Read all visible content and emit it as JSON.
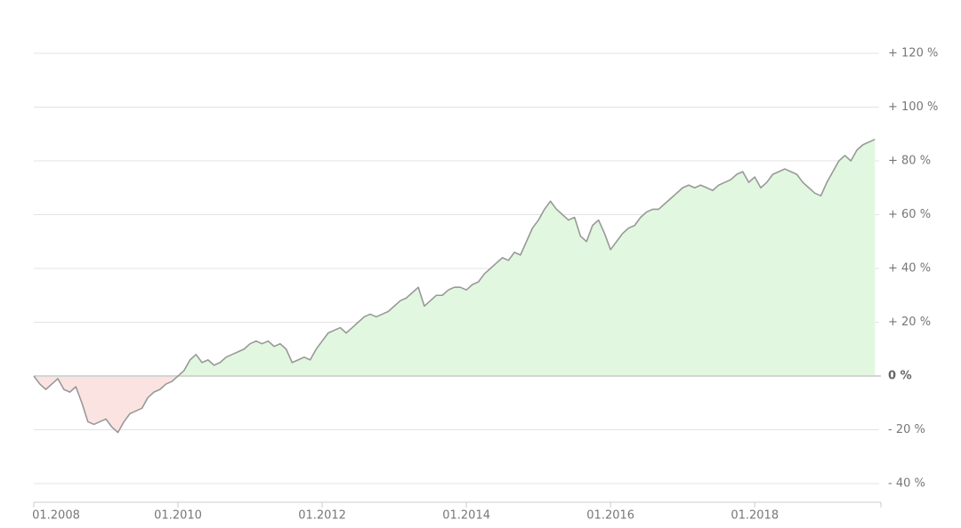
{
  "chart_data": {
    "type": "area",
    "x": [
      "01.2008",
      "02.2008",
      "03.2008",
      "04.2008",
      "05.2008",
      "06.2008",
      "07.2008",
      "08.2008",
      "09.2008",
      "10.2008",
      "11.2008",
      "12.2008",
      "01.2009",
      "02.2009",
      "03.2009",
      "04.2009",
      "05.2009",
      "06.2009",
      "07.2009",
      "08.2009",
      "09.2009",
      "10.2009",
      "11.2009",
      "12.2009",
      "01.2010",
      "02.2010",
      "03.2010",
      "04.2010",
      "05.2010",
      "06.2010",
      "07.2010",
      "08.2010",
      "09.2010",
      "10.2010",
      "11.2010",
      "12.2010",
      "01.2011",
      "02.2011",
      "03.2011",
      "04.2011",
      "05.2011",
      "06.2011",
      "07.2011",
      "08.2011",
      "09.2011",
      "10.2011",
      "11.2011",
      "12.2011",
      "01.2012",
      "02.2012",
      "03.2012",
      "04.2012",
      "05.2012",
      "06.2012",
      "07.2012",
      "08.2012",
      "09.2012",
      "10.2012",
      "11.2012",
      "12.2012",
      "01.2013",
      "02.2013",
      "03.2013",
      "04.2013",
      "05.2013",
      "06.2013",
      "07.2013",
      "08.2013",
      "09.2013",
      "10.2013",
      "11.2013",
      "12.2013",
      "01.2014",
      "02.2014",
      "03.2014",
      "04.2014",
      "05.2014",
      "06.2014",
      "07.2014",
      "08.2014",
      "09.2014",
      "10.2014",
      "11.2014",
      "12.2014",
      "01.2015",
      "02.2015",
      "03.2015",
      "04.2015",
      "05.2015",
      "06.2015",
      "07.2015",
      "08.2015",
      "09.2015",
      "10.2015",
      "11.2015",
      "12.2015",
      "01.2016",
      "02.2016",
      "03.2016",
      "04.2016",
      "05.2016",
      "06.2016",
      "07.2016",
      "08.2016",
      "09.2016",
      "10.2016",
      "11.2016",
      "12.2016",
      "01.2017",
      "02.2017",
      "03.2017",
      "04.2017",
      "05.2017",
      "06.2017",
      "07.2017",
      "08.2017",
      "09.2017",
      "10.2017",
      "11.2017",
      "12.2017",
      "01.2018",
      "02.2018",
      "03.2018",
      "04.2018",
      "05.2018",
      "06.2018",
      "07.2018",
      "08.2018",
      "09.2018",
      "10.2018",
      "11.2018",
      "12.2018",
      "01.2019",
      "02.2019",
      "03.2019",
      "04.2019",
      "05.2019",
      "06.2019",
      "07.2019",
      "08.2019",
      "09.2019"
    ],
    "values": [
      0,
      -3,
      -5,
      -3,
      -1,
      -5,
      -6,
      -4,
      -10,
      -17,
      -18,
      -17,
      -16,
      -19,
      -21,
      -17,
      -14,
      -13,
      -12,
      -8,
      -6,
      -5,
      -3,
      -2,
      0,
      2,
      6,
      8,
      5,
      6,
      4,
      5,
      7,
      8,
      9,
      10,
      12,
      13,
      12,
      13,
      11,
      12,
      10,
      5,
      6,
      7,
      6,
      10,
      13,
      16,
      17,
      18,
      16,
      18,
      20,
      22,
      23,
      22,
      23,
      24,
      26,
      28,
      29,
      31,
      33,
      26,
      28,
      30,
      30,
      32,
      33,
      33,
      32,
      34,
      35,
      38,
      40,
      42,
      44,
      43,
      46,
      45,
      50,
      55,
      58,
      62,
      65,
      62,
      60,
      58,
      59,
      52,
      50,
      56,
      58,
      53,
      47,
      50,
      53,
      55,
      56,
      59,
      61,
      62,
      62,
      64,
      66,
      68,
      70,
      71,
      70,
      71,
      70,
      69,
      71,
      72,
      73,
      75,
      76,
      72,
      74,
      70,
      72,
      75,
      76,
      77,
      76,
      75,
      72,
      70,
      68,
      67,
      72,
      76,
      80,
      82,
      80,
      84,
      86,
      87,
      88
    ],
    "xlim": [
      "01.2008",
      "10.2019"
    ],
    "xticks": [
      "01.2008",
      "01.2010",
      "01.2012",
      "01.2014",
      "01.2016",
      "01.2018"
    ],
    "ylim": [
      -40,
      120
    ],
    "yticks": [
      {
        "value": -40,
        "label": "- 40 %"
      },
      {
        "value": -20,
        "label": "- 20 %"
      },
      {
        "value": 0,
        "label": "0 %"
      },
      {
        "value": 20,
        "label": "+ 20 %"
      },
      {
        "value": 40,
        "label": "+ 40 %"
      },
      {
        "value": 60,
        "label": "+ 60 %"
      },
      {
        "value": 80,
        "label": "+ 80 %"
      },
      {
        "value": 100,
        "label": "+ 100 %"
      },
      {
        "value": 120,
        "label": "+ 120 %"
      }
    ],
    "grid": true,
    "line_color": "#999999",
    "positive_color": "#e2f7df",
    "negative_color": "#fbe3e1"
  }
}
